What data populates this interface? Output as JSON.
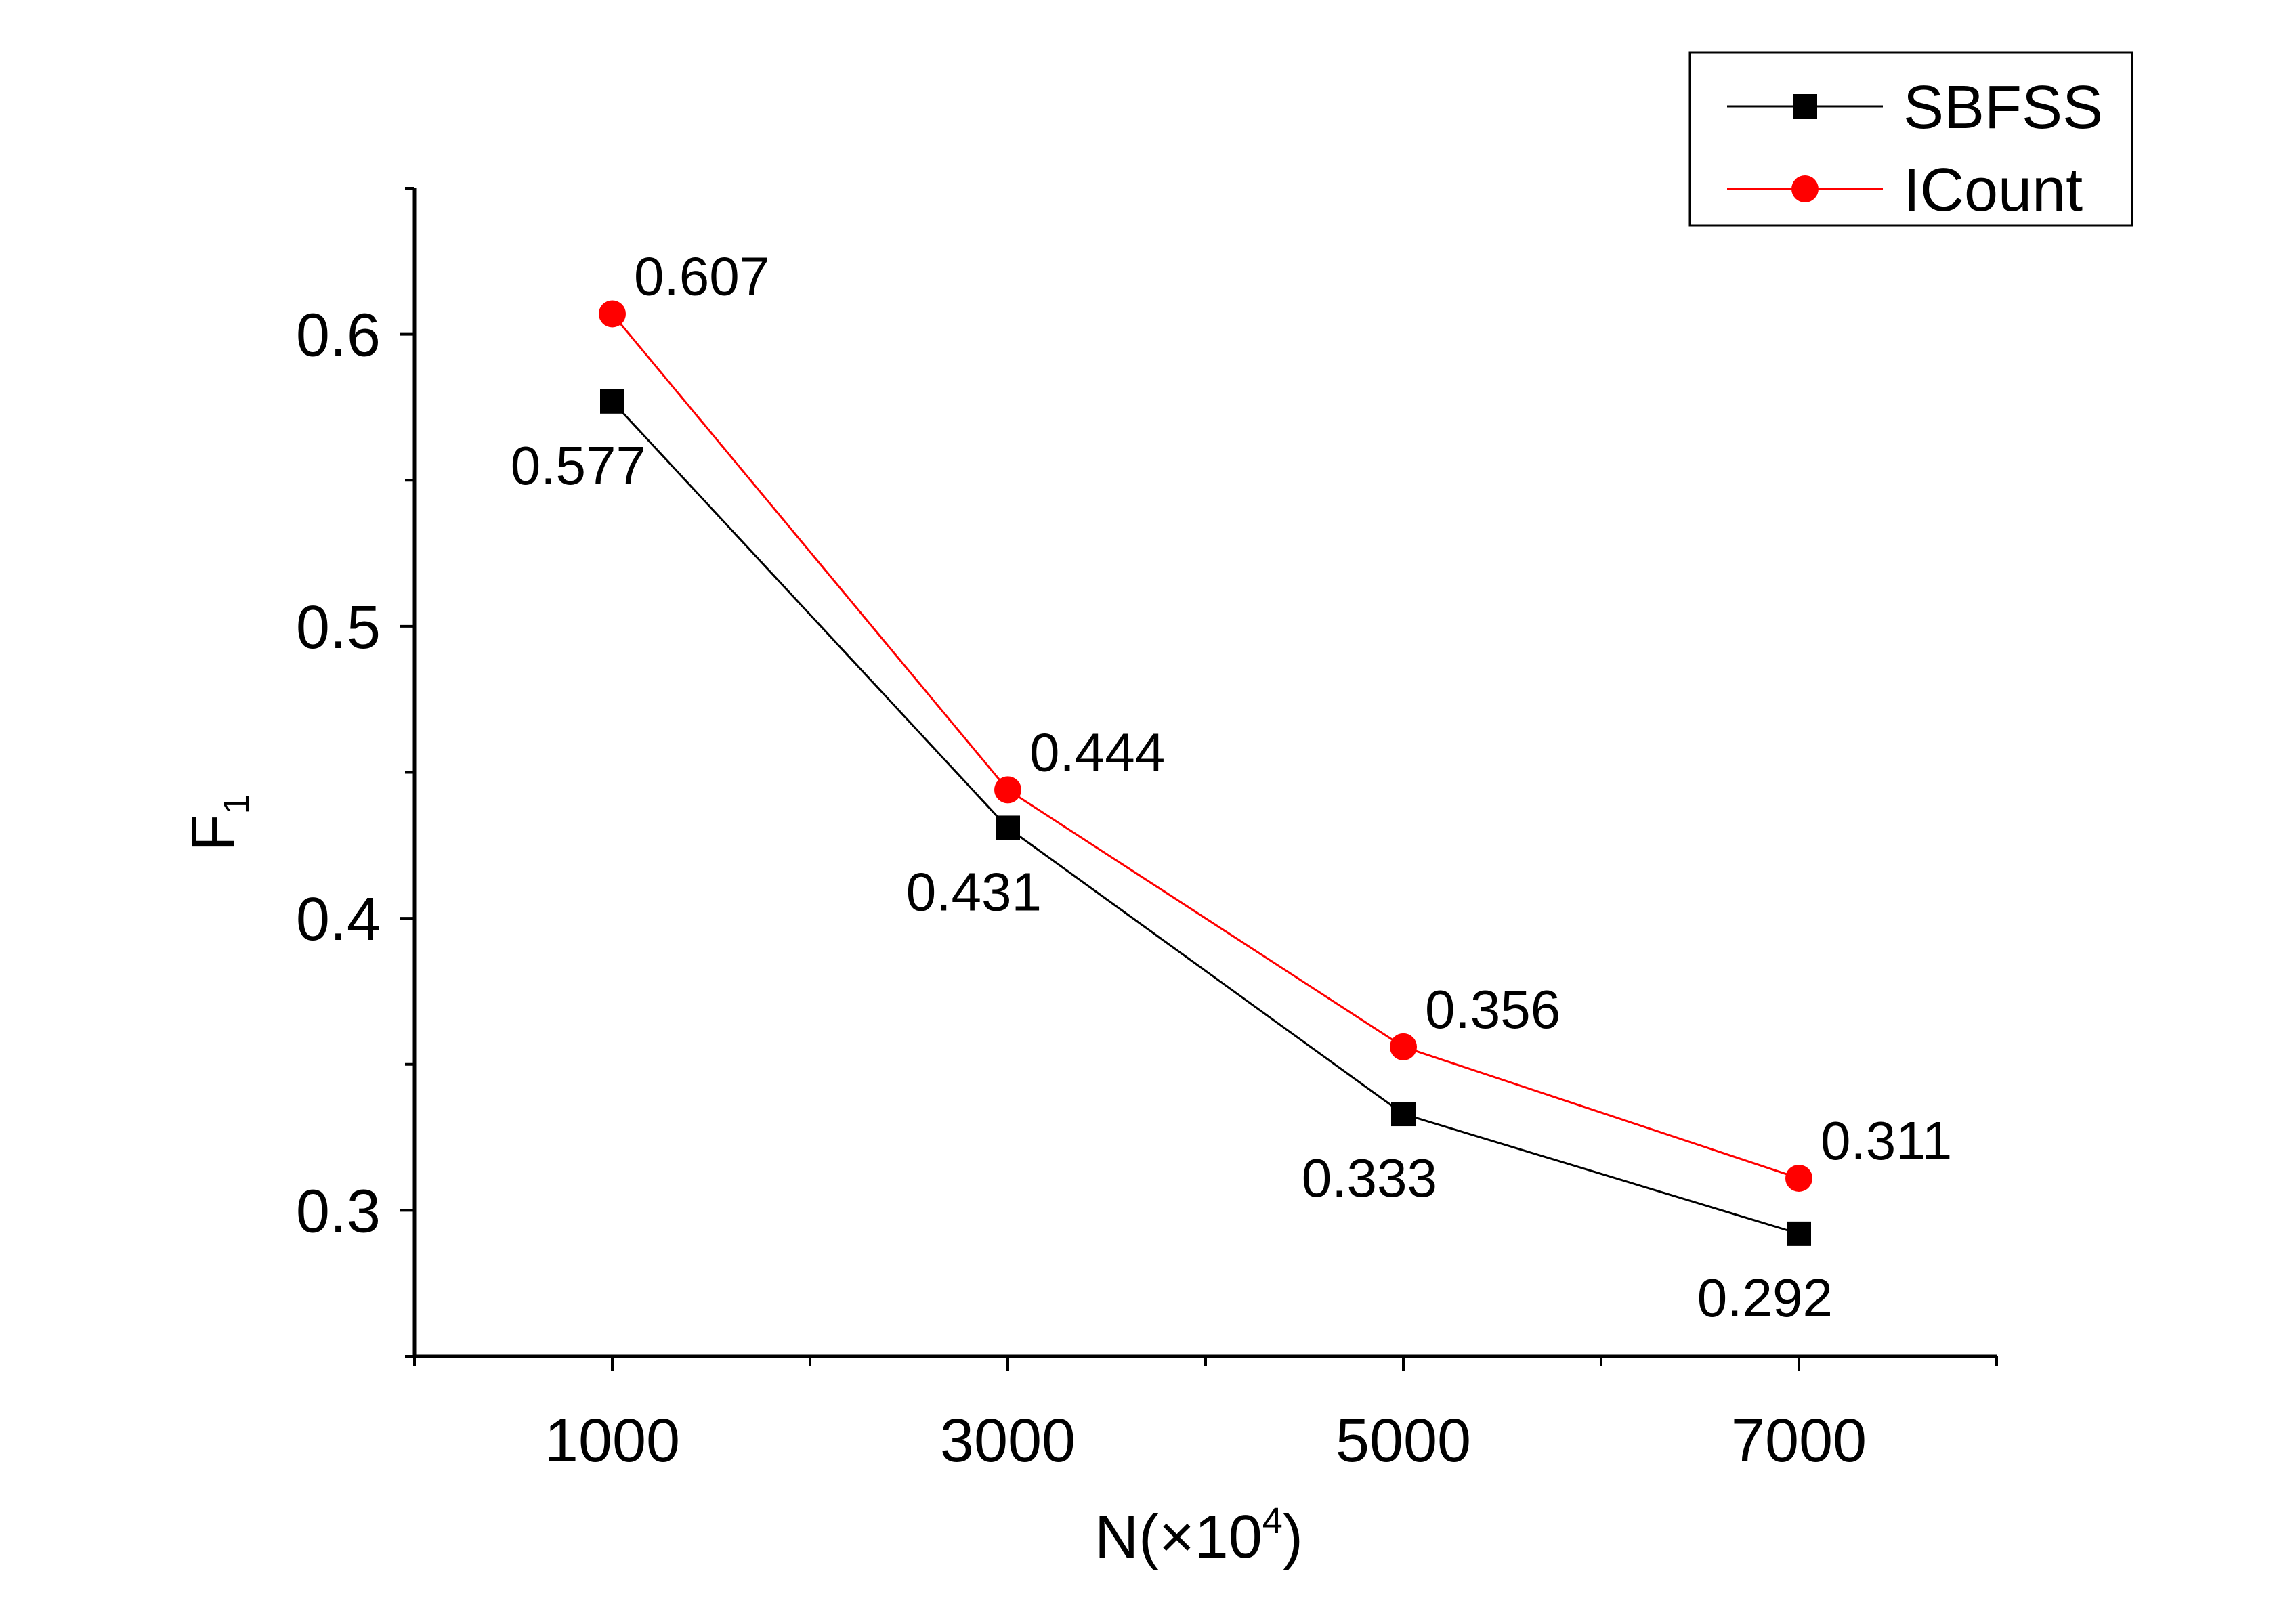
{
  "chart_data": {
    "type": "line",
    "title": "",
    "xlabel": "N(×10",
    "xlabel_sup": "4",
    "xlabel_close": ")",
    "ylabel": "F",
    "ylabel_sub": "1",
    "x": [
      1000,
      3000,
      5000,
      7000
    ],
    "xlim": [
      0,
      8000
    ],
    "ylim": [
      0.25,
      0.65
    ],
    "x_ticks": [
      "1000",
      "3000",
      "5000",
      "7000"
    ],
    "y_ticks": [
      "0.3",
      "0.4",
      "0.5",
      "0.6"
    ],
    "grid": false,
    "legend_position": "top-right",
    "series": [
      {
        "name": "SBFSS",
        "color": "#000000",
        "marker": "square",
        "values": [
          0.577,
          0.431,
          0.333,
          0.292
        ],
        "labels": [
          "0.577",
          "0.431",
          "0.333",
          "0.292"
        ],
        "label_placement": "below-left"
      },
      {
        "name": "ICount",
        "color": "#ff0000",
        "marker": "circle",
        "values": [
          0.607,
          0.444,
          0.356,
          0.311
        ],
        "labels": [
          "0.607",
          "0.444",
          "0.356",
          "0.311"
        ],
        "label_placement": "above-right"
      }
    ]
  }
}
